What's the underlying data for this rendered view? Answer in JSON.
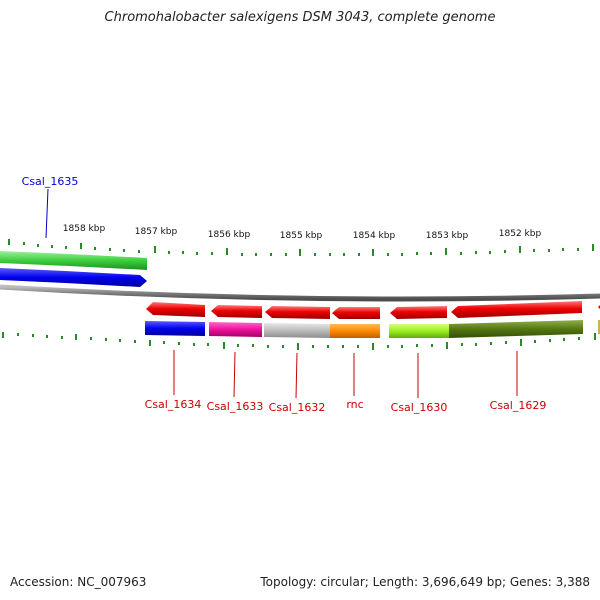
{
  "title": "Chromohalobacter salexigens DSM 3043, complete genome",
  "footer": {
    "accession": "Accession: NC_007963",
    "summary": "Topology: circular; Length: 3,696,649 bp; Genes: 3,388"
  },
  "ruler": {
    "labels": [
      "1858 kbp",
      "1857 kbp",
      "1856 kbp",
      "1855 kbp",
      "1854 kbp",
      "1853 kbp",
      "1852 kbp"
    ],
    "tick_color": "#2a8a2a"
  },
  "backbone_color": "#808080",
  "genes": [
    {
      "name": "Csal_1635",
      "strand": "forward",
      "label_color": "#0000cc",
      "colors": [
        "#33cc33",
        "#0000ee"
      ]
    },
    {
      "name": "Csal_1634",
      "strand": "reverse",
      "label_color": "#cc0000",
      "colors": [
        "#ee0000",
        "#0000ee"
      ]
    },
    {
      "name": "Csal_1633",
      "strand": "reverse",
      "label_color": "#cc0000",
      "colors": [
        "#ee0000",
        "#ee1199"
      ]
    },
    {
      "name": "Csal_1632",
      "strand": "reverse",
      "label_color": "#cc0000",
      "colors": [
        "#ee0000",
        "#bbbbbb"
      ]
    },
    {
      "name": "rnc",
      "strand": "reverse",
      "label_color": "#cc0000",
      "colors": [
        "#ee0000",
        "#ff8800"
      ]
    },
    {
      "name": "Csal_1630",
      "strand": "reverse",
      "label_color": "#cc0000",
      "colors": [
        "#ee0000",
        "#99ee22"
      ]
    },
    {
      "name": "Csal_1629",
      "strand": "reverse",
      "label_color": "#cc0000",
      "colors": [
        "#ee0000",
        "#557711"
      ]
    }
  ]
}
